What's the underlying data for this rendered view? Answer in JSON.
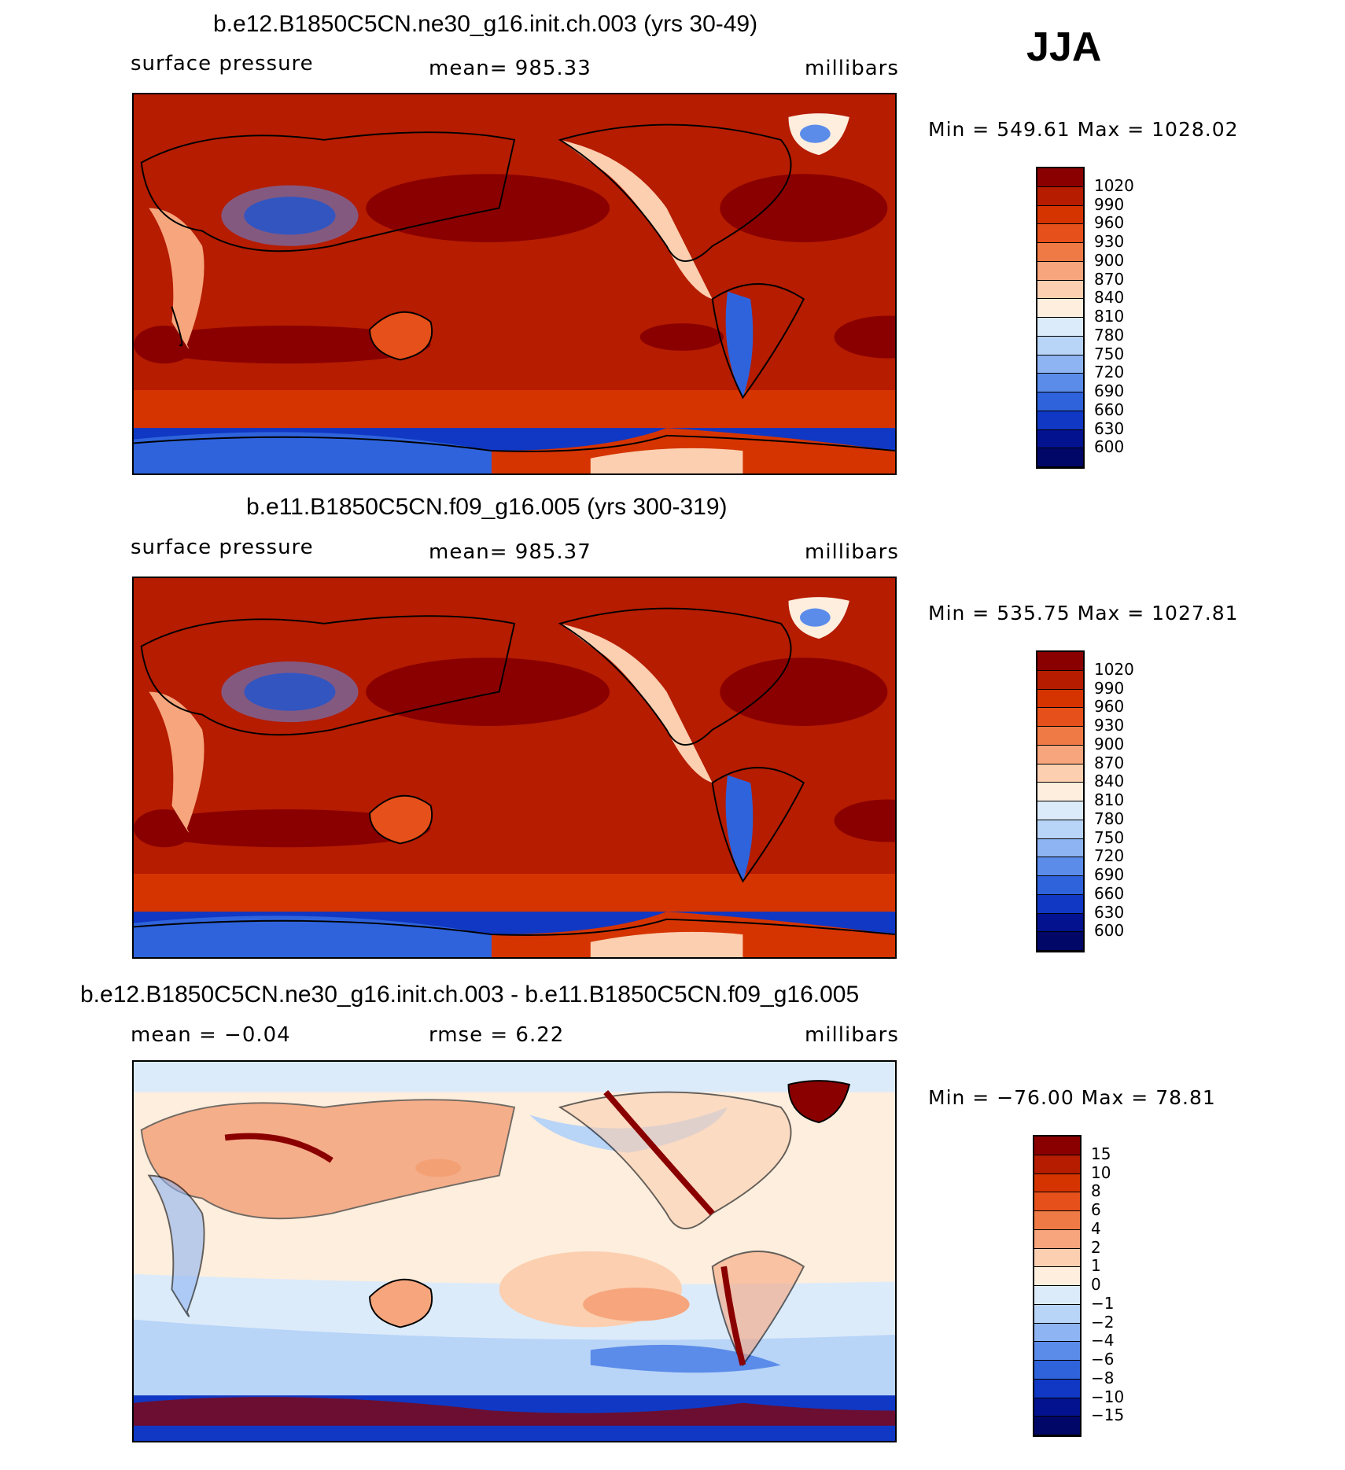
{
  "season": "JJA",
  "panels": [
    {
      "title": "b.e12.B1850C5CN.ne30_g16.init.ch.003 (yrs 30-49)",
      "variable": "surface pressure",
      "stat": "mean=  985.33",
      "units": "millibars",
      "minmax": "Min  =  549.61  Max  =  1028.02",
      "levels": [
        "1020",
        "990",
        "960",
        "930",
        "900",
        "870",
        "840",
        "810",
        "780",
        "750",
        "720",
        "690",
        "660",
        "630",
        "600"
      ]
    },
    {
      "title": "b.e11.B1850C5CN.f09_g16.005 (yrs 300-319)",
      "variable": "surface pressure",
      "stat": "mean=  985.37",
      "units": "millibars",
      "minmax": "Min  =  535.75  Max  =  1027.81",
      "levels": [
        "1020",
        "990",
        "960",
        "930",
        "900",
        "870",
        "840",
        "810",
        "780",
        "750",
        "720",
        "690",
        "660",
        "630",
        "600"
      ]
    },
    {
      "title": "b.e12.B1850C5CN.ne30_g16.init.ch.003 - b.e11.B1850C5CN.f09_g16.005",
      "variable": "mean  =    −0.04",
      "stat": "rmse  =     6.22",
      "units": "millibars",
      "minmax": "Min  =  −76.00  Max  =    78.81",
      "levels": [
        "15",
        "10",
        "8",
        "6",
        "4",
        "2",
        "1",
        "0",
        "−1",
        "−2",
        "−4",
        "−6",
        "−8",
        "−10",
        "−15"
      ]
    }
  ],
  "palettes": {
    "pressure": [
      "#8a0000",
      "#b51c00",
      "#d53400",
      "#e6501a",
      "#f07a46",
      "#f7a57c",
      "#fbcfb0",
      "#fdeede",
      "#dcebfa",
      "#b8d4f7",
      "#8fb4f3",
      "#5b8cea",
      "#2f63dc",
      "#1038c4",
      "#03138f",
      "#000766"
    ],
    "difference": [
      "#8a0000",
      "#b51c00",
      "#d53400",
      "#e6501a",
      "#f07a46",
      "#f7a57c",
      "#fbcfb0",
      "#fdeede",
      "#dcebfa",
      "#b8d4f7",
      "#8fb4f3",
      "#5b8cea",
      "#2f63dc",
      "#1038c4",
      "#03138f",
      "#000766"
    ]
  }
}
